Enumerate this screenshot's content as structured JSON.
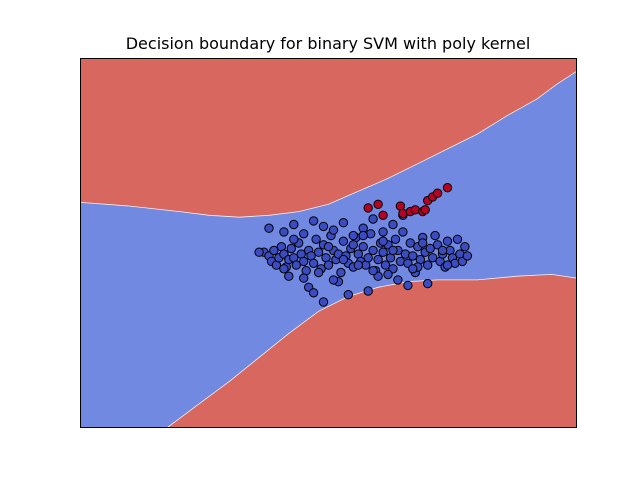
{
  "chart_data": {
    "type": "scatter",
    "title": "Decision boundary for binary SVM with poly kernel",
    "xlabel": "",
    "ylabel": "",
    "xlim": [
      0,
      100
    ],
    "ylim": [
      0,
      100
    ],
    "axis_ticks": false,
    "grid": false,
    "legend": "none",
    "region_colors": {
      "positive": "#d8675f",
      "negative": "#7189e0"
    },
    "regions": [
      {
        "name": "positive",
        "color": "#d8675f",
        "boundary": [
          [
            0,
            61
          ],
          [
            10,
            60
          ],
          [
            20,
            58.5
          ],
          [
            26,
            57.5
          ],
          [
            32,
            57
          ],
          [
            38,
            57.5
          ],
          [
            44,
            58.5
          ],
          [
            50,
            60.5
          ],
          [
            56,
            64
          ],
          [
            62,
            67.5
          ],
          [
            68,
            71.5
          ],
          [
            74,
            75.5
          ],
          [
            80,
            79.5
          ],
          [
            86,
            84.5
          ],
          [
            92,
            89
          ],
          [
            96,
            93
          ],
          [
            100,
            96.5
          ],
          [
            100,
            100
          ],
          [
            0,
            100
          ]
        ]
      },
      {
        "name": "positive",
        "color": "#d8675f",
        "boundary": [
          [
            17.5,
            0
          ],
          [
            20,
            2.5
          ],
          [
            25,
            7.5
          ],
          [
            30,
            12.5
          ],
          [
            36,
            19
          ],
          [
            42,
            25.5
          ],
          [
            48,
            31.5
          ],
          [
            54,
            35.5
          ],
          [
            60,
            38
          ],
          [
            66,
            39.5
          ],
          [
            72,
            40
          ],
          [
            80,
            40
          ],
          [
            88,
            41
          ],
          [
            95,
            41.5
          ],
          [
            100,
            40.5
          ],
          [
            100,
            0
          ]
        ]
      }
    ],
    "series": [
      {
        "class": "negative",
        "color": "#3a4cc0",
        "x": [
          37,
          38,
          38.5,
          39,
          39.5,
          40,
          40.5,
          41,
          41.5,
          42,
          42.5,
          43,
          43.5,
          44,
          44.5,
          45,
          45.5,
          46,
          46.5,
          47,
          47.5,
          48,
          48.5,
          49,
          49.5,
          50,
          50.5,
          51,
          51.5,
          52,
          52.5,
          53,
          53.5,
          54,
          54.5,
          55,
          55.5,
          56,
          56.5,
          57,
          57.5,
          58,
          58.5,
          59,
          59.5,
          60,
          60.5,
          61,
          61.5,
          62,
          62.5,
          63,
          63.5,
          64,
          64.5,
          65,
          65.5,
          66,
          66.5,
          67,
          67.5,
          68,
          68.5,
          69,
          69.5,
          70,
          70.5,
          71,
          71.5,
          72,
          72.5,
          73,
          73.5,
          74,
          74.5,
          75,
          75.5,
          76,
          76.5,
          77,
          77.5,
          78,
          38,
          41,
          43,
          45,
          47,
          49,
          51,
          53,
          55,
          57,
          59,
          61,
          63,
          65,
          46,
          52,
          58,
          64,
          54,
          60,
          66,
          70,
          36,
          41,
          48,
          56,
          62,
          68,
          74,
          42,
          50,
          57,
          63,
          69,
          45,
          51,
          59,
          67,
          43,
          55,
          61,
          73,
          47,
          53,
          49
        ],
        "y": [
          47.5,
          46.5,
          45,
          48,
          44,
          46,
          49,
          47,
          43.5,
          45.5,
          48.5,
          46,
          44,
          50,
          47,
          45,
          42.5,
          48,
          46.5,
          44.5,
          51,
          47.5,
          43,
          49.5,
          46,
          44,
          52,
          48,
          45.5,
          47,
          42,
          50.5,
          46.5,
          44.5,
          48.5,
          43.5,
          51.5,
          47,
          45,
          49,
          44,
          46,
          52.5,
          48,
          42.5,
          45.5,
          50,
          47.5,
          44,
          49.5,
          46,
          43,
          51,
          48,
          45,
          53,
          47,
          44.5,
          50,
          46.5,
          42,
          49,
          45.5,
          51.5,
          47.5,
          44,
          48.5,
          46,
          52,
          49.5,
          45,
          47,
          43.5,
          50.5,
          48,
          46,
          44.5,
          51,
          47,
          45,
          49,
          46.5,
          54,
          53,
          55,
          52.5,
          56,
          54.5,
          53.5,
          55.5,
          52,
          54,
          56.5,
          53,
          55,
          57.5,
          38,
          39.5,
          37,
          40,
          36,
          41,
          38.5,
          39,
          47.5,
          43,
          42,
          44,
          41.5,
          43.5,
          44,
          41,
          49,
          52,
          48,
          50,
          40.5,
          40,
          42.5,
          43,
          51,
          49.5,
          50.5,
          48,
          36.5,
          45.5,
          34
        ],
        "note": ""
      },
      {
        "class": "positive",
        "color": "#b40426",
        "x": [
          64.5,
          65,
          66.5,
          67.5,
          69,
          69.5,
          70,
          71,
          72,
          74,
          58,
          61,
          60
        ],
        "y": [
          60,
          58,
          58.5,
          59,
          58.5,
          59,
          61.5,
          62.5,
          63.5,
          65,
          59.5,
          57.5,
          60.5
        ],
        "note": ""
      }
    ]
  }
}
